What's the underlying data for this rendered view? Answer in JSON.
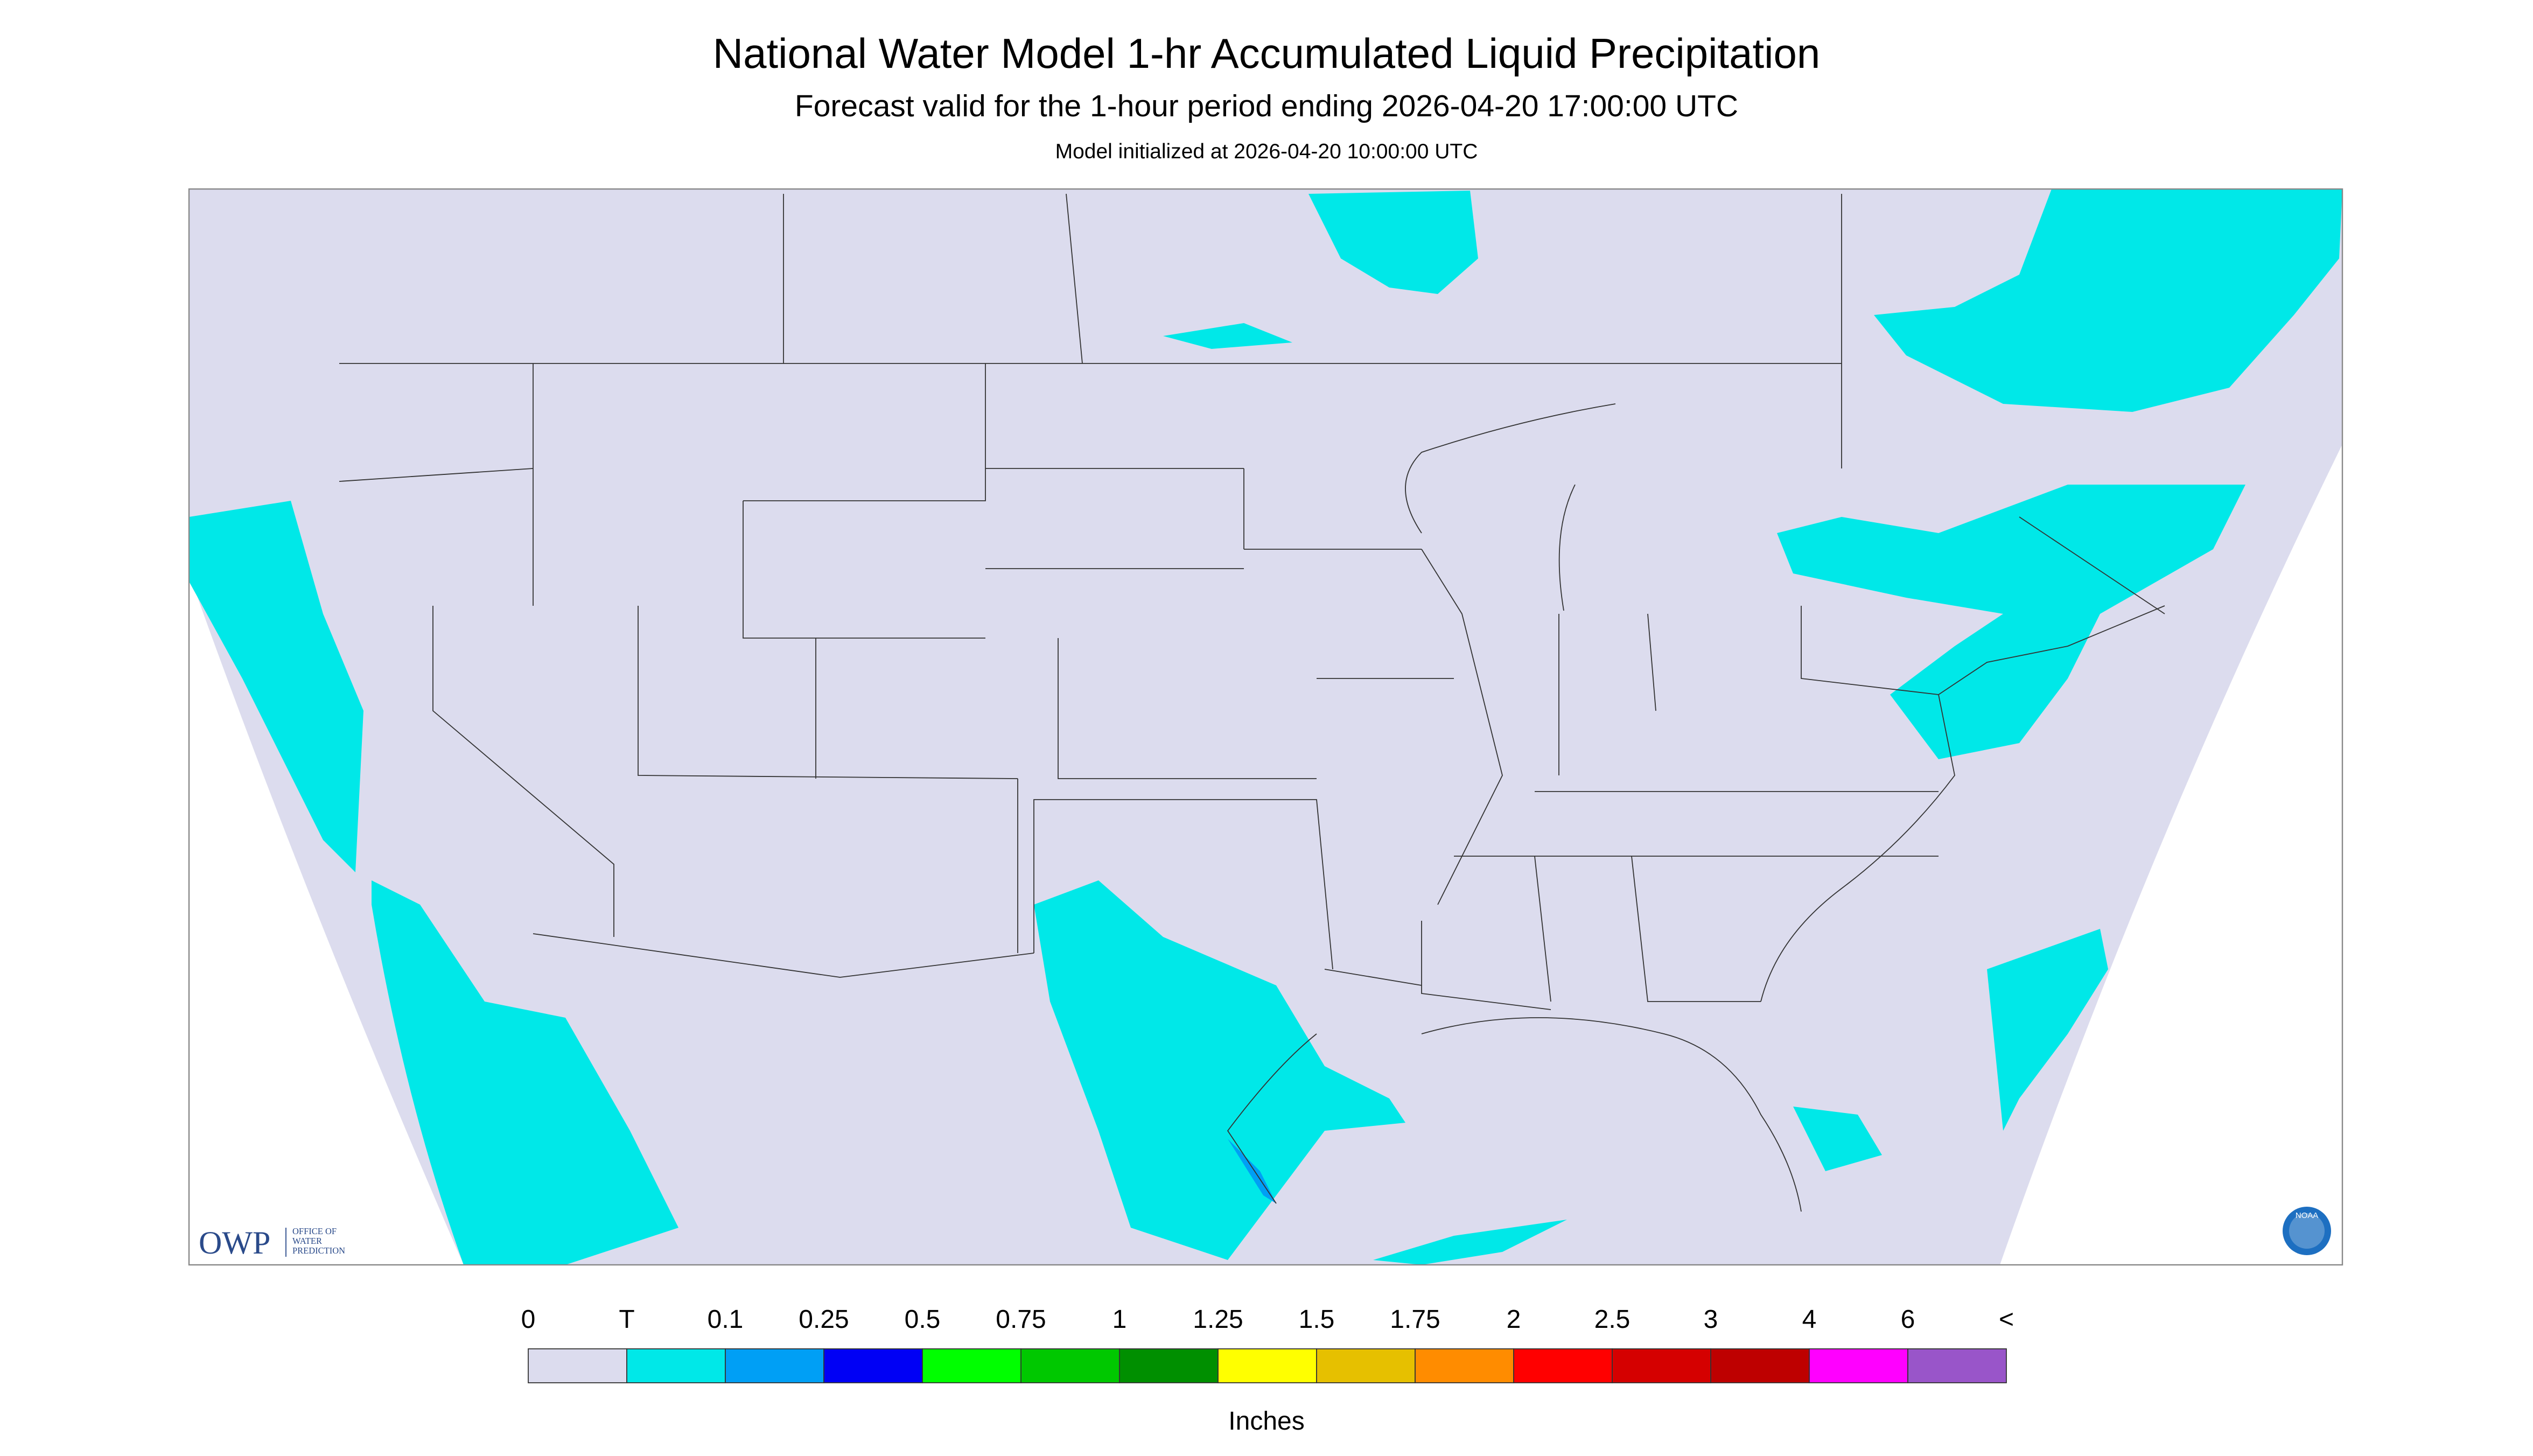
{
  "header": {
    "title": "National Water Model 1-hr Accumulated Liquid Precipitation",
    "subtitle": "Forecast valid for the 1-hour period ending 2026-04-20 17:00:00 UTC",
    "initialized": "Model initialized at 2026-04-20 10:00:00 UTC"
  },
  "logo": {
    "acronym": "OWP",
    "lines": [
      "OFFICE OF",
      "WATER",
      "PREDICTION"
    ],
    "badge": "NOAA"
  },
  "legend": {
    "labels": [
      "0",
      "T",
      "0.1",
      "0.25",
      "0.5",
      "0.75",
      "1",
      "1.25",
      "1.5",
      "1.75",
      "2",
      "2.5",
      "3",
      "4",
      "6",
      "<"
    ],
    "colors": [
      "#dcdcee",
      "#00e8e8",
      "#009ff5",
      "#0000f5",
      "#00ff00",
      "#00c800",
      "#008f00",
      "#ffff00",
      "#e6c000",
      "#ff8c00",
      "#ff0000",
      "#d50000",
      "#be0000",
      "#ff00ff",
      "#9955c9"
    ],
    "unit": "Inches"
  }
}
